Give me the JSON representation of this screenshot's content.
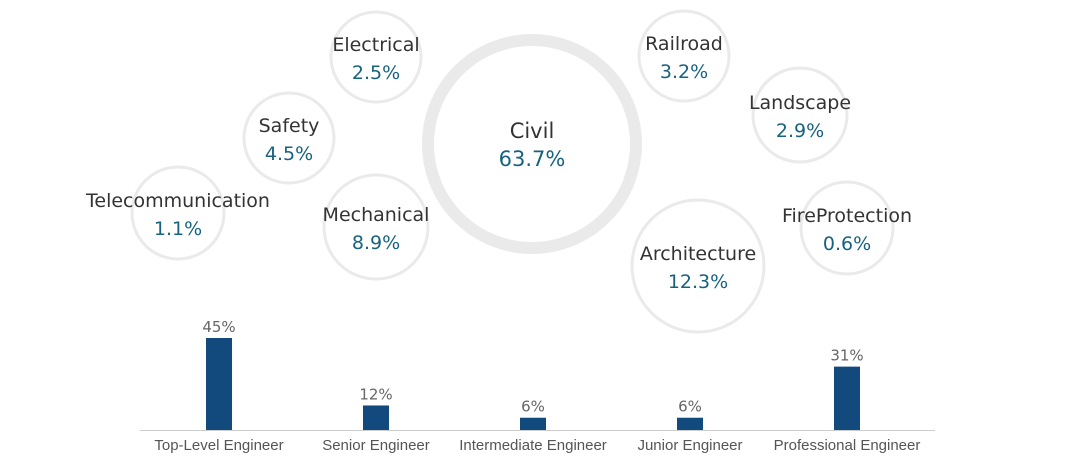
{
  "chart_data": [
    {
      "type": "bubble",
      "series": [
        {
          "name": "Civil",
          "value_label": "63.7%",
          "value": 63.7
        },
        {
          "name": "Architecture",
          "value_label": "12.3%",
          "value": 12.3
        },
        {
          "name": "Mechanical",
          "value_label": "8.9%",
          "value": 8.9
        },
        {
          "name": "Safety",
          "value_label": "4.5%",
          "value": 4.5
        },
        {
          "name": "Railroad",
          "value_label": "3.2%",
          "value": 3.2
        },
        {
          "name": "Landscape",
          "value_label": "2.9%",
          "value": 2.9
        },
        {
          "name": "Electrical",
          "value_label": "2.5%",
          "value": 2.5
        },
        {
          "name": "Telecommunication",
          "value_label": "1.1%",
          "value": 1.1
        },
        {
          "name": "FireProtection",
          "value_label": "0.6%",
          "value": 0.6
        }
      ]
    },
    {
      "type": "bar",
      "categories": [
        "Top-Level Engineer",
        "Senior Engineer",
        "Intermediate Engineer",
        "Junior Engineer",
        "Professional Engineer"
      ],
      "values": [
        45,
        12,
        6,
        6,
        31
      ],
      "labels": [
        "45%",
        "12%",
        "6%",
        "6%",
        "31%"
      ],
      "ylim": [
        0,
        45
      ]
    }
  ],
  "colors": {
    "circle_stroke": "#eaeaea",
    "name_text": "#333333",
    "value_text": "#17637f",
    "bar": "#124a7e",
    "bar_label": "#666666",
    "category_text": "#555555",
    "axis": "#cccccc"
  }
}
